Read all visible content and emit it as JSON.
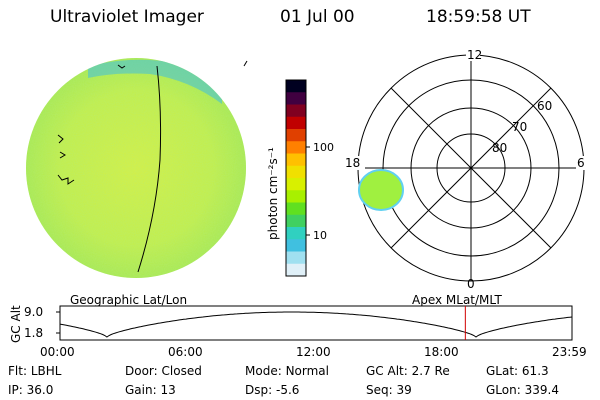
{
  "header": {
    "title": "Ultraviolet Imager",
    "date": "01 Jul 00",
    "time": "18:59:58 UT"
  },
  "colorbar": {
    "unit_label": "photon cm⁻²s⁻¹",
    "tick_100": "100",
    "tick_10": "10",
    "colors": [
      "#000020",
      "#400040",
      "#800020",
      "#c00000",
      "#e04000",
      "#ff8000",
      "#ffc000",
      "#f0e000",
      "#d8f000",
      "#a8f000",
      "#60e020",
      "#40d060",
      "#30d0c0",
      "#40c0e0",
      "#a0e0f0",
      "#e0f0f8"
    ]
  },
  "image_panel": {
    "left_label": "Geographic Lat/Lon",
    "right_label": "Apex MLat/MLT",
    "disk_color": "#c8f040",
    "edge_color": "#40c0e0"
  },
  "polar_plot": {
    "mlt_labels": {
      "top": "12",
      "left": "18",
      "right": "6",
      "bottom": "0"
    },
    "lat_labels": [
      "60",
      "70",
      "80"
    ],
    "blob_color": "#a0f040"
  },
  "timeline": {
    "ylabel": "GC Alt",
    "y_high": "9.0",
    "y_low": "1.8",
    "x_ticks": [
      "00:00",
      "06:00",
      "12:00",
      "18:00",
      "23:59"
    ],
    "marker_time_hours": 19.0
  },
  "status": {
    "row1": [
      {
        "label": "Flt:",
        "value": "LBHL"
      },
      {
        "label": "Door:",
        "value": "Closed"
      },
      {
        "label": "Mode:",
        "value": "Normal"
      },
      {
        "label": "GC Alt:",
        "value": "2.7 Re"
      },
      {
        "label": "GLat:",
        "value": "61.3"
      }
    ],
    "row2": [
      {
        "label": "IP:",
        "value": "36.0"
      },
      {
        "label": "Gain:",
        "value": "13"
      },
      {
        "label": "Dsp:",
        "value": "-5.6"
      },
      {
        "label": "Seq:",
        "value": "39"
      },
      {
        "label": "GLon:",
        "value": "339.4"
      }
    ]
  }
}
